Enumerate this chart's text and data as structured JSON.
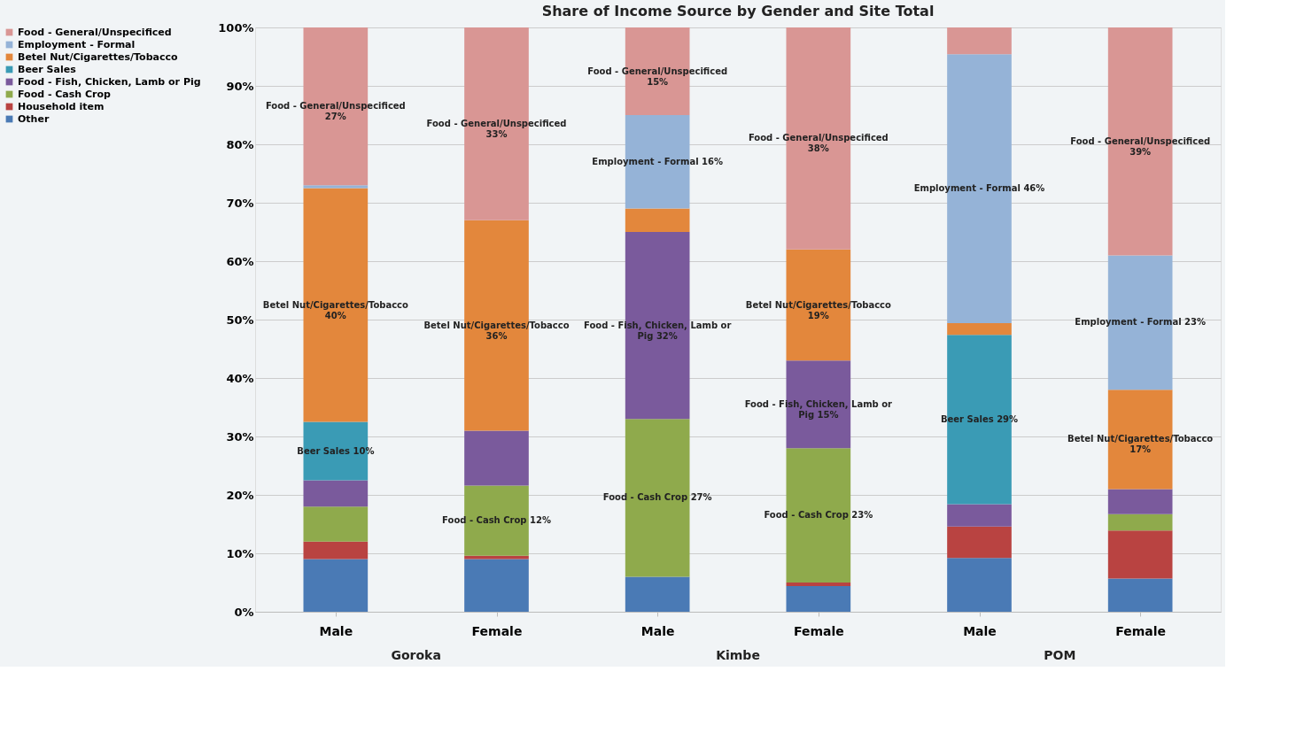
{
  "chart_data": {
    "type": "bar",
    "stacked": true,
    "title": "Share of Income Source by Gender and Site Total",
    "categories": [
      "Male",
      "Female",
      "Male",
      "Female",
      "Male",
      "Female"
    ],
    "annotations": [
      "Goroka",
      "Kimbe",
      "POM"
    ],
    "ylim": [
      0,
      100
    ],
    "yticks": [
      {
        "value": 0,
        "label": "0%"
      },
      {
        "value": 10,
        "label": "10%"
      },
      {
        "value": 20,
        "label": "20%"
      },
      {
        "value": 30,
        "label": "30%"
      },
      {
        "value": 40,
        "label": "40%"
      },
      {
        "value": 50,
        "label": "50%"
      },
      {
        "value": 60,
        "label": "60%"
      },
      {
        "value": 70,
        "label": "70%"
      },
      {
        "value": 80,
        "label": "80%"
      },
      {
        "value": 90,
        "label": "90%"
      },
      {
        "value": 100,
        "label": "100%"
      }
    ],
    "grid": "y",
    "legend": "left",
    "series": [
      {
        "name": "Other",
        "color": "#4a7ab5",
        "values": [
          9,
          9,
          6,
          4.4,
          9.2,
          5.7
        ]
      },
      {
        "name": "Household item",
        "color": "#b94341",
        "values": [
          3,
          0.6,
          null,
          0.6,
          5.4,
          8.2
        ]
      },
      {
        "name": "Food - Cash Crop",
        "color": "#8faa4c",
        "values": [
          6,
          12,
          27,
          23,
          null,
          2.8
        ],
        "value_labels": [
          null,
          "Food - Cash Crop 12%",
          "Food - Cash Crop 27%",
          "Food - Cash Crop 23%",
          null,
          null
        ]
      },
      {
        "name": "Food - Fish, Chicken, Lamb or Pig",
        "color": "#7a5a9c",
        "values": [
          4.5,
          9.4,
          32,
          15,
          3.8,
          4.3
        ],
        "value_labels": [
          null,
          null,
          "Food - Fish, Chicken, Lamb or\nPig 32%",
          "Food - Fish, Chicken, Lamb or\nPig 15%",
          null,
          null
        ]
      },
      {
        "name": "Beer Sales",
        "color": "#3a9bb5",
        "values": [
          10,
          null,
          null,
          null,
          29,
          null
        ],
        "value_labels": [
          "Beer Sales 10%",
          null,
          null,
          null,
          "Beer Sales 29%",
          null
        ]
      },
      {
        "name": "Betel Nut/Cigarettes/Tobacco",
        "color": "#e3873c",
        "values": [
          40,
          36,
          4,
          19,
          2,
          17
        ],
        "value_labels": [
          "Betel Nut/Cigarettes/Tobacco\n40%",
          "Betel Nut/Cigarettes/Tobacco\n36%",
          null,
          "Betel Nut/Cigarettes/Tobacco\n19%",
          null,
          "Betel Nut/Cigarettes/Tobacco\n17%"
        ]
      },
      {
        "name": "Employment - Formal",
        "color": "#95b3d7",
        "values": [
          0.5,
          null,
          16,
          null,
          46,
          23
        ],
        "value_labels": [
          null,
          null,
          "Employment - Formal 16%",
          null,
          "Employment - Formal 46%",
          "Employment - Formal 23%"
        ]
      },
      {
        "name": "Food - General/Unspecificed",
        "color": "#d99694",
        "values": [
          27,
          33,
          15,
          38,
          4.6,
          39
        ],
        "value_labels": [
          "Food - General/Unspecificed\n27%",
          "Food - General/Unspecificed\n33%",
          "Food - General/Unspecificed\n15%",
          "Food - General/Unspecificed\n38%",
          null,
          "Food - General/Unspecificed\n39%"
        ]
      }
    ]
  }
}
